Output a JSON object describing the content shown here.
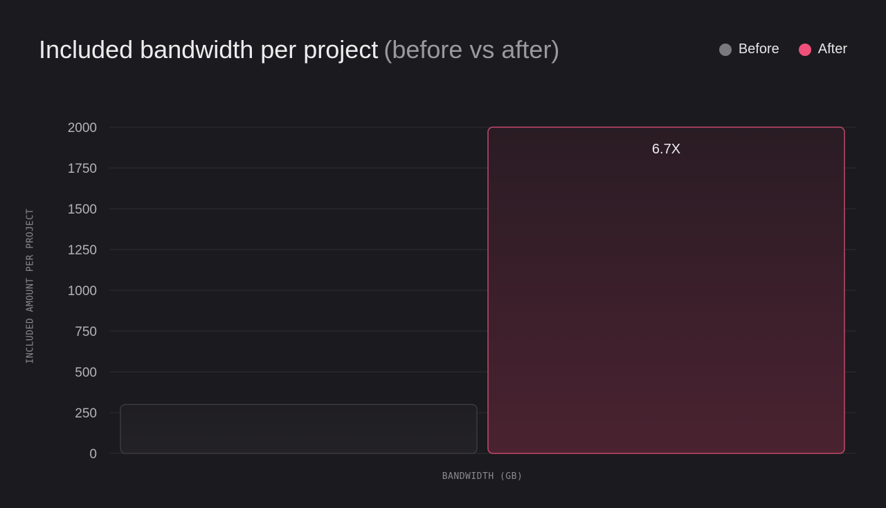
{
  "chart_data": {
    "type": "bar",
    "title": "Included bandwidth per project",
    "subtitle": "(before vs after)",
    "xlabel": "BANDWIDTH (GB)",
    "ylabel": "INCLUDED AMOUNT PER PROJECT",
    "ylim": [
      0,
      2000
    ],
    "yticks": [
      "0",
      "250",
      "500",
      "750",
      "1000",
      "1250",
      "1500",
      "1750",
      "2000"
    ],
    "grid": true,
    "legend_position": "top-right",
    "categories": [
      "Bandwidth (GB)"
    ],
    "series": [
      {
        "name": "Before",
        "values": [
          300
        ],
        "color": "#7a797e"
      },
      {
        "name": "After",
        "values": [
          2000
        ],
        "color": "#f0507a"
      }
    ],
    "annotations": [
      {
        "series": "After",
        "text": "6.7X"
      }
    ]
  }
}
